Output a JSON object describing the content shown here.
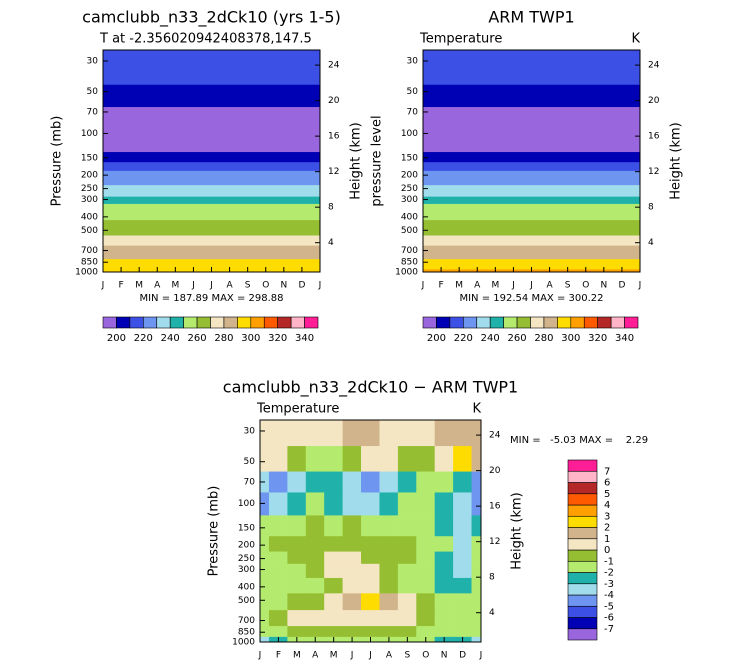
{
  "chart_data": [
    {
      "type": "contour",
      "title": "camclubb_n33_2dCk10 (yrs 1-5)",
      "subtitle": "T at -2.356020942408378,147.5",
      "ylabel": "Pressure (mb)",
      "y2label": "Height (km)",
      "categories": [
        "J",
        "F",
        "M",
        "A",
        "M",
        "J",
        "J",
        "A",
        "S",
        "O",
        "N",
        "D",
        "J"
      ],
      "levels": [
        25,
        30,
        40,
        50,
        60,
        70,
        85,
        100,
        125,
        150,
        175,
        200,
        225,
        250,
        275,
        300,
        350,
        400,
        450,
        500,
        600,
        700,
        775,
        850,
        925,
        1000
      ],
      "profile": [
        214,
        215,
        212,
        205,
        203,
        199,
        196,
        194,
        195,
        203,
        212,
        222,
        229,
        234,
        238,
        244,
        252,
        258,
        263,
        267,
        274,
        281,
        286,
        291,
        295,
        298
      ],
      "log_y": true,
      "ylim": [
        1000,
        25
      ],
      "yticks": [
        30,
        50,
        70,
        100,
        150,
        200,
        250,
        300,
        400,
        500,
        700,
        850,
        1000
      ],
      "y2lim": [
        0.7,
        25.7
      ],
      "y2ticks": [
        4,
        8,
        12,
        16,
        20,
        24
      ],
      "contour_levels": [
        200,
        210,
        220,
        230,
        240,
        250,
        260,
        270,
        280,
        290,
        300,
        310,
        320,
        330,
        340
      ],
      "colors": [
        "#9966dd",
        "#0000b4",
        "#3c50e6",
        "#6e96f0",
        "#a0dceb",
        "#20b2aa",
        "#b4eb6e",
        "#96be32",
        "#f5e6c3",
        "#d2b48c",
        "#ffdc00",
        "#ffa000",
        "#ff5a00",
        "#b42828",
        "#ffb4c8",
        "#ff1e96"
      ],
      "colorbar": "bottom",
      "stats": "MIN = 187.89 MAX = 298.88"
    },
    {
      "type": "contour",
      "title": "ARM TWP1",
      "subtitle": "Temperature",
      "units": "K",
      "ylabel": "pressure level",
      "y2label": "Height (km)",
      "categories": [
        "J",
        "F",
        "M",
        "A",
        "M",
        "J",
        "J",
        "A",
        "S",
        "O",
        "N",
        "D",
        "J"
      ],
      "levels": [
        25,
        30,
        40,
        50,
        60,
        70,
        85,
        100,
        125,
        150,
        175,
        200,
        225,
        250,
        275,
        300,
        350,
        400,
        450,
        500,
        600,
        700,
        775,
        850,
        925,
        1000
      ],
      "profile": [
        216,
        215,
        210,
        204,
        201,
        198,
        195,
        193,
        196,
        204,
        213,
        222,
        229,
        234,
        239,
        244,
        252,
        258,
        263,
        267,
        274,
        281,
        286,
        292,
        296,
        300
      ],
      "log_y": true,
      "ylim": [
        1000,
        25
      ],
      "yticks": [
        30,
        50,
        70,
        100,
        150,
        200,
        250,
        300,
        400,
        500,
        700,
        850,
        1000
      ],
      "y2lim": [
        0.7,
        25.7
      ],
      "y2ticks": [
        4,
        8,
        12,
        16,
        20,
        24
      ],
      "contour_levels": [
        200,
        210,
        220,
        230,
        240,
        250,
        260,
        270,
        280,
        290,
        300,
        310,
        320,
        330,
        340
      ],
      "colors": [
        "#9966dd",
        "#0000b4",
        "#3c50e6",
        "#6e96f0",
        "#a0dceb",
        "#20b2aa",
        "#b4eb6e",
        "#96be32",
        "#f5e6c3",
        "#d2b48c",
        "#ffdc00",
        "#ffa000",
        "#ff5a00",
        "#b42828",
        "#ffb4c8",
        "#ff1e96"
      ],
      "colorbar": "bottom",
      "stats": "MIN = 192.54 MAX = 300.22"
    },
    {
      "type": "contour",
      "title": "camclubb_n33_2dCk10 − ARM TWP1",
      "subtitle": "Temperature",
      "units": "K",
      "ylabel": "Pressure (mb)",
      "y2label": "Height (km)",
      "categories": [
        "J",
        "F",
        "M",
        "A",
        "M",
        "J",
        "J",
        "A",
        "S",
        "O",
        "N",
        "D",
        "J"
      ],
      "levels": [
        30,
        50,
        70,
        100,
        150,
        200,
        250,
        300,
        400,
        500,
        700,
        850,
        1000
      ],
      "values": [
        [
          0.3,
          0.5,
          0.5,
          0.5,
          0.3,
          1.2,
          1.3,
          0.5,
          0.3,
          0.5,
          1.2,
          1.4,
          1.3
        ],
        [
          0.3,
          0.2,
          -0.5,
          -1.5,
          -1.5,
          -0.5,
          0.3,
          0.5,
          -0.3,
          -1,
          0.5,
          2.1,
          1.2
        ],
        [
          -3.5,
          -4.5,
          -3.5,
          -2.5,
          -3,
          -3.5,
          -4.3,
          -3.5,
          -2.5,
          -1.5,
          -2,
          -3,
          -4.5
        ],
        [
          -4.2,
          -3.5,
          -2.5,
          -1.5,
          -2.5,
          -3.5,
          -3.5,
          -2.5,
          -1.5,
          -1.5,
          -2.5,
          -3.5,
          -4.5
        ],
        [
          -1.5,
          -1.5,
          -1.3,
          -0.8,
          -1.5,
          -0.5,
          -1.5,
          -1.5,
          -1.5,
          -1.5,
          -2.2,
          -3.5,
          -2.5
        ],
        [
          -1.5,
          -0.5,
          -0.5,
          -0.7,
          -0.5,
          -0.3,
          -0.6,
          -0.8,
          -0.6,
          -1.2,
          -2,
          -3.5,
          -2
        ],
        [
          -1.5,
          -1.5,
          -0.8,
          -0.4,
          0.3,
          0.5,
          -0.5,
          -0.7,
          -1,
          -1.3,
          -2.3,
          -3.3,
          -1.5
        ],
        [
          -1.5,
          -1.6,
          -1.2,
          -0.6,
          0.3,
          0.4,
          0.3,
          -0.5,
          -1.2,
          -1.5,
          -2.5,
          -3.2,
          -1.5
        ],
        [
          -1.5,
          -1.5,
          -1.6,
          -1.5,
          -0.5,
          0.2,
          0.3,
          -0.5,
          -1.5,
          -1.5,
          -2.2,
          -2.5,
          -1.5
        ],
        [
          -1.6,
          -1.3,
          -0.7,
          -0.4,
          0.3,
          1.5,
          2.1,
          1.2,
          0.3,
          -0.8,
          -1.3,
          -1.5,
          -1.6
        ],
        [
          -1.5,
          -0.6,
          0.2,
          0.3,
          0.6,
          0.8,
          0.5,
          0.5,
          0.3,
          -0.5,
          -1.2,
          -1.5,
          -1.5
        ],
        [
          -1.5,
          -1.2,
          -0.5,
          -0.6,
          -0.3,
          -0.4,
          -0.6,
          -0.4,
          -0.6,
          -1.2,
          -1.8,
          -1.6,
          -1.5
        ],
        [
          -3.2,
          -2.5,
          -1.5,
          -1.5,
          -1.5,
          -1.3,
          -1.5,
          -1.5,
          -1.5,
          -1.7,
          -2.5,
          -3,
          -3.2
        ]
      ],
      "log_y": true,
      "ylim": [
        1000,
        25
      ],
      "yticks": [
        30,
        50,
        70,
        100,
        150,
        200,
        250,
        300,
        400,
        500,
        700,
        850,
        1000
      ],
      "y2lim": [
        0.7,
        25.7
      ],
      "y2ticks": [
        4,
        8,
        12,
        16,
        20,
        24
      ],
      "contour_levels": [
        -7,
        -6,
        -5,
        -4,
        -3,
        -2,
        -1,
        0,
        1,
        2,
        3,
        4,
        5,
        6,
        7
      ],
      "colors": [
        "#9966dd",
        "#0000b4",
        "#3c50e6",
        "#6e96f0",
        "#a0dceb",
        "#20b2aa",
        "#b4eb6e",
        "#96be32",
        "#f5e6c3",
        "#d2b48c",
        "#ffdc00",
        "#ffa000",
        "#ff5a00",
        "#b42828",
        "#ffb4c8",
        "#ff1e96"
      ],
      "colorbar": "right",
      "stats": "MIN =   -5.03 MAX =    2.29"
    }
  ]
}
